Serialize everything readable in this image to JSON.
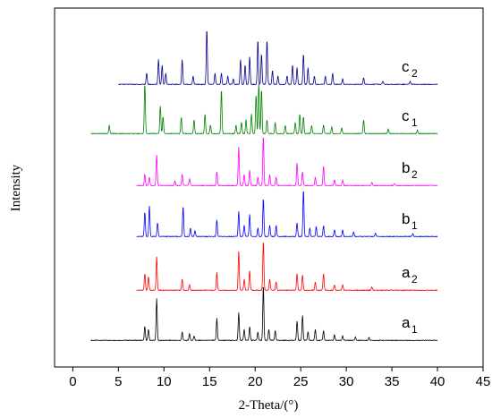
{
  "chart_data": {
    "type": "line",
    "title": "",
    "xlabel": "2-Theta/(°)",
    "ylabel": "Intensity",
    "xlim": [
      -2,
      45
    ],
    "xticks": [
      0,
      5,
      10,
      15,
      20,
      25,
      30,
      35,
      40,
      45
    ],
    "y_ticks_shown": false,
    "grid": false,
    "legend": "inline-labels-right",
    "series": [
      {
        "name": "a1",
        "label_main": "a",
        "label_sub": "1",
        "color": "#000000",
        "baseline": 0,
        "x_start": 2,
        "x_end": 40,
        "peaks": [
          [
            7.9,
            0.25
          ],
          [
            8.3,
            0.2
          ],
          [
            9.2,
            0.75
          ],
          [
            12.0,
            0.15
          ],
          [
            12.8,
            0.12
          ],
          [
            13.3,
            0.08
          ],
          [
            15.8,
            0.4
          ],
          [
            18.2,
            0.5
          ],
          [
            18.8,
            0.2
          ],
          [
            19.4,
            0.25
          ],
          [
            20.3,
            0.15
          ],
          [
            20.9,
            1.0
          ],
          [
            21.5,
            0.2
          ],
          [
            22.2,
            0.18
          ],
          [
            24.6,
            0.35
          ],
          [
            25.2,
            0.45
          ],
          [
            25.8,
            0.15
          ],
          [
            26.6,
            0.2
          ],
          [
            27.5,
            0.18
          ],
          [
            28.7,
            0.1
          ],
          [
            29.6,
            0.08
          ],
          [
            31.0,
            0.06
          ],
          [
            32.5,
            0.05
          ]
        ]
      },
      {
        "name": "a2",
        "label_main": "a",
        "label_sub": "2",
        "color": "#ff0000",
        "baseline": 1,
        "x_start": 7,
        "x_end": 40,
        "peaks": [
          [
            7.9,
            0.3
          ],
          [
            8.3,
            0.25
          ],
          [
            9.2,
            0.6
          ],
          [
            12.0,
            0.2
          ],
          [
            12.8,
            0.1
          ],
          [
            15.8,
            0.32
          ],
          [
            18.2,
            0.7
          ],
          [
            18.8,
            0.2
          ],
          [
            19.4,
            0.35
          ],
          [
            20.9,
            0.9
          ],
          [
            21.6,
            0.2
          ],
          [
            22.3,
            0.15
          ],
          [
            24.6,
            0.3
          ],
          [
            25.2,
            0.28
          ],
          [
            26.6,
            0.15
          ],
          [
            27.5,
            0.3
          ],
          [
            28.7,
            0.1
          ],
          [
            29.6,
            0.1
          ],
          [
            32.8,
            0.06
          ]
        ]
      },
      {
        "name": "b1",
        "label_main": "b",
        "label_sub": "1",
        "color": "#0000ff",
        "baseline": 2,
        "x_start": 7,
        "x_end": 40,
        "peaks": [
          [
            7.9,
            0.45
          ],
          [
            8.4,
            0.55
          ],
          [
            9.3,
            0.25
          ],
          [
            12.1,
            0.55
          ],
          [
            12.9,
            0.15
          ],
          [
            13.4,
            0.1
          ],
          [
            15.8,
            0.3
          ],
          [
            18.2,
            0.45
          ],
          [
            18.8,
            0.2
          ],
          [
            19.4,
            0.4
          ],
          [
            20.3,
            0.15
          ],
          [
            20.9,
            0.7
          ],
          [
            21.6,
            0.2
          ],
          [
            22.3,
            0.2
          ],
          [
            24.6,
            0.25
          ],
          [
            25.3,
            0.85
          ],
          [
            26.0,
            0.15
          ],
          [
            26.7,
            0.18
          ],
          [
            27.5,
            0.2
          ],
          [
            28.7,
            0.12
          ],
          [
            29.6,
            0.12
          ],
          [
            30.8,
            0.08
          ],
          [
            33.2,
            0.06
          ],
          [
            37.3,
            0.05
          ]
        ]
      },
      {
        "name": "b2",
        "label_main": "b",
        "label_sub": "2",
        "color": "#ff00ff",
        "baseline": 3,
        "x_start": 7,
        "x_end": 40,
        "peaks": [
          [
            7.9,
            0.2
          ],
          [
            8.4,
            0.15
          ],
          [
            9.2,
            0.55
          ],
          [
            11.2,
            0.08
          ],
          [
            12.0,
            0.2
          ],
          [
            12.8,
            0.12
          ],
          [
            15.8,
            0.25
          ],
          [
            18.2,
            0.7
          ],
          [
            18.8,
            0.2
          ],
          [
            19.4,
            0.28
          ],
          [
            20.3,
            0.15
          ],
          [
            20.9,
            0.9
          ],
          [
            21.6,
            0.2
          ],
          [
            22.3,
            0.15
          ],
          [
            24.6,
            0.4
          ],
          [
            25.2,
            0.25
          ],
          [
            26.6,
            0.15
          ],
          [
            27.5,
            0.35
          ],
          [
            28.7,
            0.1
          ],
          [
            29.6,
            0.1
          ],
          [
            32.8,
            0.06
          ],
          [
            35.3,
            0.04
          ]
        ]
      },
      {
        "name": "c1",
        "label_main": "c",
        "label_sub": "1",
        "color": "#008000",
        "baseline": 4,
        "x_start": 2,
        "x_end": 40,
        "peaks": [
          [
            4.0,
            0.15
          ],
          [
            7.9,
            0.9
          ],
          [
            9.6,
            0.5
          ],
          [
            9.9,
            0.3
          ],
          [
            11.9,
            0.3
          ],
          [
            13.3,
            0.25
          ],
          [
            14.5,
            0.35
          ],
          [
            15.1,
            0.15
          ],
          [
            16.3,
            0.8
          ],
          [
            17.9,
            0.15
          ],
          [
            18.5,
            0.2
          ],
          [
            19.0,
            0.25
          ],
          [
            19.6,
            0.35
          ],
          [
            20.1,
            0.7
          ],
          [
            20.4,
            0.9
          ],
          [
            20.7,
            0.8
          ],
          [
            21.3,
            0.25
          ],
          [
            22.2,
            0.2
          ],
          [
            23.3,
            0.15
          ],
          [
            24.4,
            0.2
          ],
          [
            24.9,
            0.35
          ],
          [
            25.3,
            0.3
          ],
          [
            26.2,
            0.15
          ],
          [
            27.5,
            0.15
          ],
          [
            28.4,
            0.12
          ],
          [
            29.5,
            0.1
          ],
          [
            31.9,
            0.25
          ],
          [
            34.6,
            0.08
          ],
          [
            37.8,
            0.06
          ]
        ]
      },
      {
        "name": "c2",
        "label_main": "c",
        "label_sub": "2",
        "color": "#00008b",
        "baseline": 5,
        "x_start": 5,
        "x_end": 40,
        "peaks": [
          [
            8.1,
            0.2
          ],
          [
            9.4,
            0.45
          ],
          [
            9.8,
            0.35
          ],
          [
            10.2,
            0.2
          ],
          [
            12.0,
            0.45
          ],
          [
            13.2,
            0.15
          ],
          [
            14.7,
            1.0
          ],
          [
            15.6,
            0.2
          ],
          [
            16.3,
            0.2
          ],
          [
            17.0,
            0.15
          ],
          [
            17.6,
            0.1
          ],
          [
            18.4,
            0.45
          ],
          [
            18.9,
            0.35
          ],
          [
            19.4,
            0.5
          ],
          [
            20.3,
            0.8
          ],
          [
            20.7,
            0.55
          ],
          [
            21.3,
            0.8
          ],
          [
            21.9,
            0.25
          ],
          [
            22.5,
            0.15
          ],
          [
            23.5,
            0.15
          ],
          [
            24.1,
            0.35
          ],
          [
            24.6,
            0.3
          ],
          [
            25.3,
            0.55
          ],
          [
            25.8,
            0.3
          ],
          [
            26.5,
            0.15
          ],
          [
            27.7,
            0.15
          ],
          [
            28.5,
            0.2
          ],
          [
            29.6,
            0.1
          ],
          [
            31.9,
            0.12
          ],
          [
            34.0,
            0.06
          ],
          [
            37.0,
            0.05
          ]
        ]
      }
    ]
  }
}
